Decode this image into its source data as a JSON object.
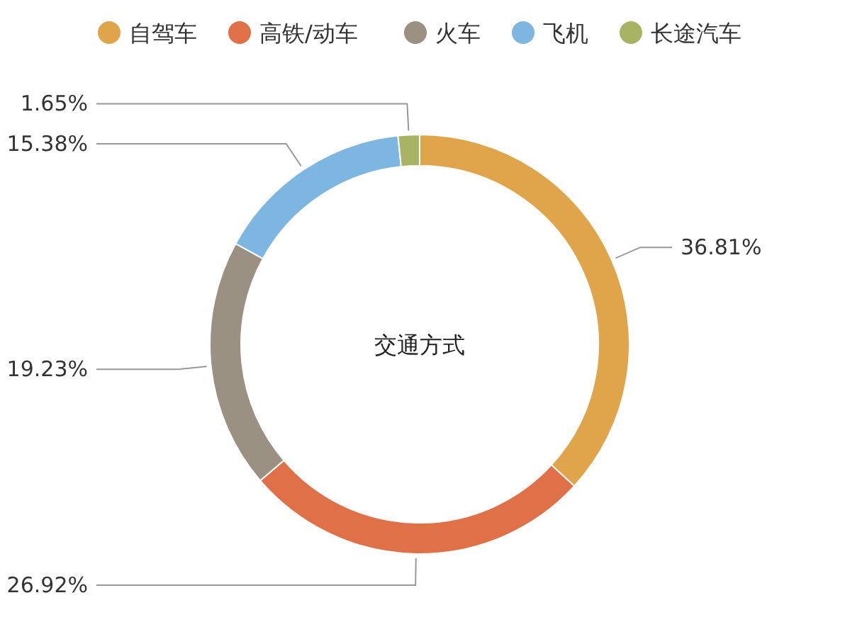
{
  "chart_data": {
    "type": "donut",
    "title": "交通方式",
    "categories": [
      "自驾车",
      "高铁/动车",
      "火车",
      "飞机",
      "长途汽车"
    ],
    "values": [
      36.81,
      26.92,
      19.23,
      15.38,
      1.65
    ],
    "colors": [
      "#e0a54a",
      "#e07048",
      "#9b9182",
      "#7db6e0",
      "#a8b464"
    ],
    "value_labels": [
      "36.81%",
      "26.92%",
      "19.23%",
      "15.38%",
      "1.65%"
    ],
    "legend": "top"
  }
}
